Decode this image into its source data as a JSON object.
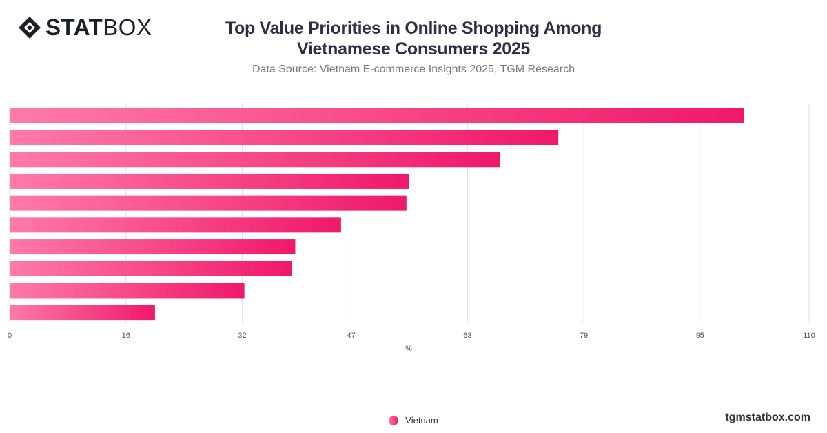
{
  "header": {
    "logo_bold": "STAT",
    "logo_light": "BOX",
    "title_line1": "Top Value Priorities in Online Shopping Among",
    "title_line2": "Vietnamese Consumers 2025",
    "subtitle": "Data Source: Vietnam E-commerce Insights 2025, TGM Research"
  },
  "footer": {
    "brand": "tgmstatbox.com"
  },
  "colors": {
    "bar_start": "#ff7aa8",
    "bar_end": "#f0186a",
    "grid": "#e2e2e2"
  },
  "chart_data": {
    "type": "bar",
    "orientation": "horizontal",
    "title": "Top Value Priorities in Online Shopping Among Vietnamese Consumers 2025",
    "subtitle": "Data Source: Vietnam E-commerce Insights 2025, TGM Research",
    "xlabel": "%",
    "ylabel": "",
    "xlim": [
      0,
      110
    ],
    "ticks": [
      "0",
      "16",
      "32",
      "47",
      "63",
      "79",
      "95",
      "110"
    ],
    "grid": true,
    "legend": "bottom-center",
    "series": [
      {
        "name": "Vietnam",
        "values": [
          101,
          75.5,
          67.5,
          55,
          54.6,
          45.6,
          39.3,
          38.8,
          32.3,
          20
        ]
      }
    ]
  }
}
